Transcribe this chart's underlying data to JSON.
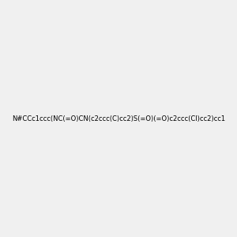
{
  "smiles": "N#CCc1ccc(NC(=O)CN(c2ccc(C)cc2)S(=O)(=O)c2ccc(Cl)cc2)cc1",
  "background_color": "#f0f0f0",
  "figsize": [
    3.0,
    3.0
  ],
  "dpi": 100,
  "title": ""
}
